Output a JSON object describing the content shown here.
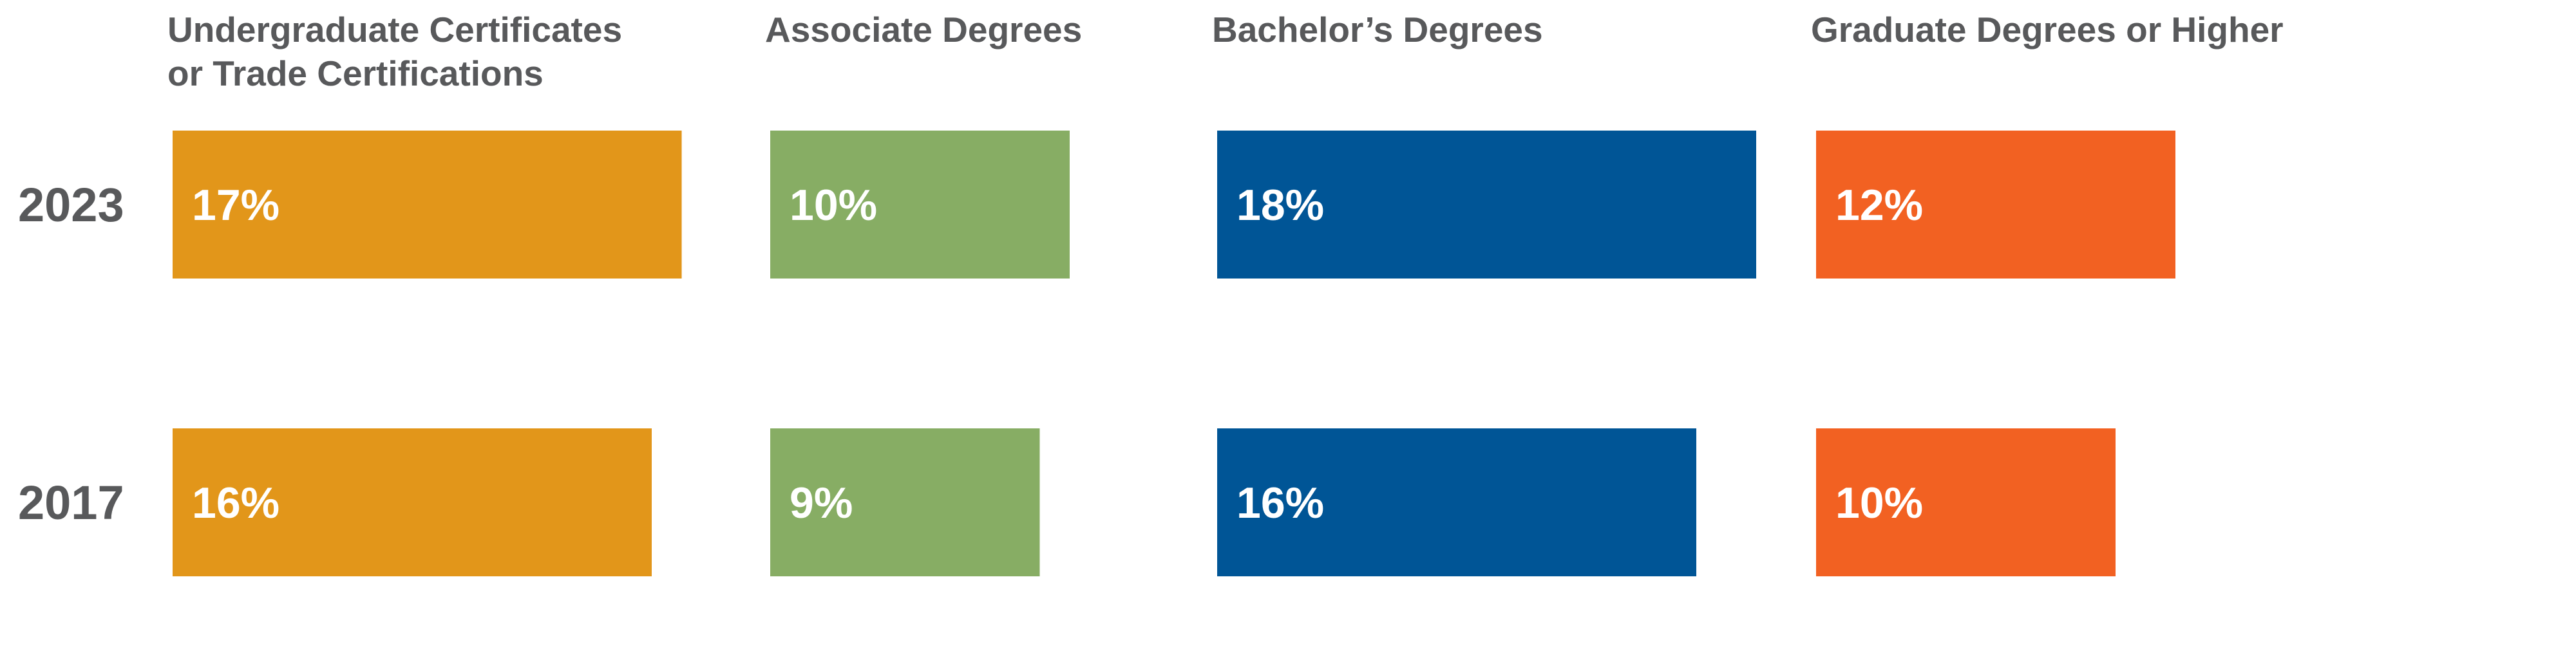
{
  "chart_data": {
    "type": "bar",
    "categories": [
      {
        "lines": [
          "Undergraduate Certificates",
          "or Trade Certifications"
        ],
        "color": "#E2961A"
      },
      {
        "lines": [
          "Associate Degrees"
        ],
        "color": "#87AD64"
      },
      {
        "lines": [
          "Bachelor’s Degrees"
        ],
        "color": "#005596"
      },
      {
        "lines": [
          "Graduate Degrees or Higher"
        ],
        "color": "#F26122"
      }
    ],
    "series": [
      {
        "year": "2023",
        "values": [
          17,
          10,
          18,
          12
        ],
        "labels": [
          "17%",
          "10%",
          "18%",
          "12%"
        ]
      },
      {
        "year": "2017",
        "values": [
          16,
          9,
          16,
          10
        ],
        "labels": [
          "16%",
          "9%",
          "16%",
          "10%"
        ]
      }
    ],
    "unit": "%",
    "text_color": "#58595B",
    "value_text_color": "#FFFFFF"
  }
}
